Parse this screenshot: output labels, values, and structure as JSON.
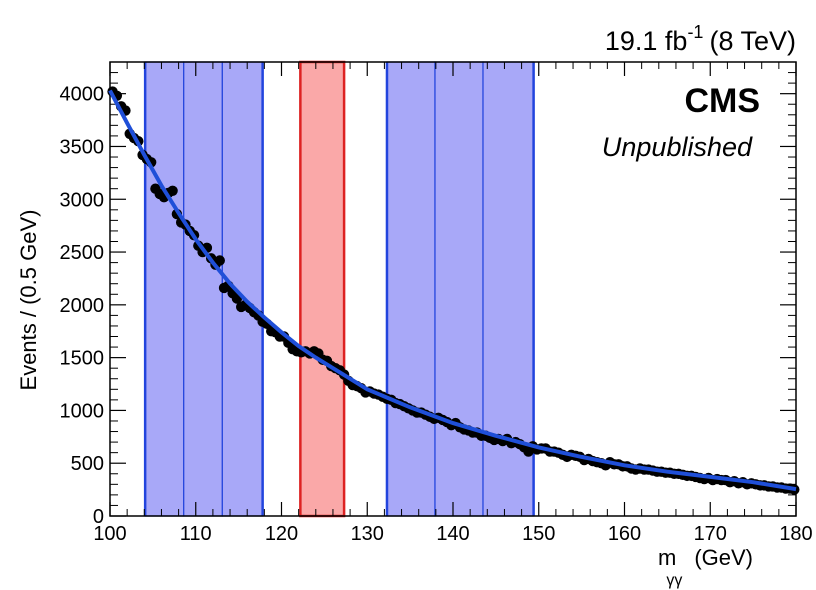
{
  "chart_data": {
    "type": "scatter",
    "title": "",
    "luminosity_label": {
      "main": "19.1 fb",
      "superscript": "-1",
      "energy": "(8 TeV)"
    },
    "experiment_label": "CMS",
    "status_label": "Unpublished",
    "xlabel": {
      "main": "m",
      "subscript": "γγ",
      "unit": "(GeV)"
    },
    "ylabel": "Events / (0.5 GeV)",
    "xlim": [
      100,
      180
    ],
    "ylim": [
      0,
      4300
    ],
    "xticks": [
      100,
      110,
      120,
      130,
      140,
      150,
      160,
      170,
      180
    ],
    "yticks": [
      0,
      500,
      1000,
      1500,
      2000,
      2500,
      3000,
      3500,
      4000
    ],
    "sideband_color": "#a8a8f8",
    "sideband_edge_color": "#2244dd",
    "signal_color": "#faa8a8",
    "signal_edge_color": "#dd2222",
    "fit_color": "#1f4fd8",
    "marker_color": "#000000",
    "sideband_regions": [
      [
        104.1,
        108.6
      ],
      [
        108.6,
        113.1
      ],
      [
        113.1,
        117.8
      ],
      [
        132.3,
        137.9
      ],
      [
        137.9,
        143.5
      ],
      [
        143.5,
        149.4
      ]
    ],
    "signal_region": [
      122.2,
      127.3
    ],
    "fit_curve": {
      "x": [
        100,
        102,
        104,
        106,
        108,
        110,
        112,
        114,
        116,
        118,
        120,
        122,
        124,
        126,
        128,
        130,
        135,
        140,
        145,
        150,
        155,
        160,
        165,
        170,
        175,
        180
      ],
      "y": [
        4030,
        3720,
        3420,
        3130,
        2870,
        2620,
        2400,
        2200,
        2030,
        1880,
        1740,
        1610,
        1500,
        1400,
        1300,
        1200,
        1030,
        880,
        760,
        650,
        560,
        480,
        420,
        370,
        320,
        255
      ]
    },
    "series": [
      {
        "x": [
          100.3,
          100.8,
          101.3,
          101.8,
          102.3,
          102.8,
          103.3,
          103.8,
          104.3,
          104.8,
          105.3,
          105.8,
          106.3,
          106.8,
          107.3,
          107.8,
          108.3,
          108.8,
          109.3,
          109.8,
          110.3,
          110.8,
          111.3,
          111.8,
          112.3,
          112.8,
          113.3,
          113.8,
          114.3,
          114.8,
          115.3,
          115.8,
          116.3,
          116.8,
          117.3,
          117.8,
          118.3,
          118.8,
          119.3,
          119.8,
          120.3,
          120.8,
          121.3,
          121.8,
          122.3,
          122.8,
          123.3,
          123.8,
          124.3,
          124.8,
          125.3,
          125.8,
          126.3,
          126.8,
          127.3,
          127.8,
          128.3,
          128.8,
          129.3,
          129.8,
          130.3,
          130.8,
          131.3,
          131.8,
          132.3,
          132.8,
          133.3,
          133.8,
          134.3,
          134.8,
          135.3,
          135.8,
          136.3,
          136.8,
          137.3,
          137.8,
          138.3,
          138.8,
          139.3,
          139.8,
          140.3,
          140.8,
          141.3,
          141.8,
          142.3,
          142.8,
          143.3,
          143.8,
          144.3,
          144.8,
          145.3,
          145.8,
          146.3,
          146.8,
          147.3,
          147.8,
          148.3,
          148.8,
          149.3,
          149.8,
          150.3,
          150.8,
          151.3,
          151.8,
          152.3,
          152.8,
          153.3,
          153.8,
          154.3,
          154.8,
          155.3,
          155.8,
          156.3,
          156.8,
          157.3,
          157.8,
          158.3,
          158.8,
          159.3,
          159.8,
          160.3,
          160.8,
          161.3,
          161.8,
          162.3,
          162.8,
          163.3,
          163.8,
          164.3,
          164.8,
          165.3,
          165.8,
          166.3,
          166.8,
          167.3,
          167.8,
          168.3,
          168.8,
          169.3,
          169.8,
          170.3,
          170.8,
          171.3,
          171.8,
          172.3,
          172.8,
          173.3,
          173.8,
          174.3,
          174.8,
          175.3,
          175.8,
          176.3,
          176.8,
          177.3,
          177.8,
          178.3,
          178.8,
          179.3,
          179.8
        ],
        "y": [
          4020,
          3980,
          3880,
          3840,
          3620,
          3580,
          3550,
          3420,
          3380,
          3350,
          3100,
          3050,
          3020,
          3060,
          3080,
          2860,
          2780,
          2760,
          2700,
          2660,
          2560,
          2500,
          2540,
          2440,
          2380,
          2420,
          2160,
          2180,
          2110,
          2060,
          1980,
          2000,
          1970,
          1930,
          1900,
          1840,
          1820,
          1750,
          1740,
          1700,
          1700,
          1640,
          1580,
          1560,
          1550,
          1560,
          1540,
          1560,
          1540,
          1480,
          1470,
          1420,
          1400,
          1380,
          1340,
          1280,
          1240,
          1230,
          1210,
          1170,
          1180,
          1160,
          1150,
          1130,
          1110,
          1100,
          1070,
          1060,
          1040,
          1020,
          1000,
          980,
          980,
          960,
          940,
          920,
          930,
          910,
          890,
          860,
          880,
          840,
          820,
          810,
          790,
          790,
          760,
          760,
          740,
          720,
          730,
          710,
          730,
          690,
          700,
          680,
          650,
          610,
          660,
          630,
          640,
          640,
          610,
          610,
          600,
          580,
          560,
          580,
          570,
          560,
          530,
          540,
          520,
          510,
          500,
          480,
          510,
          490,
          490,
          470,
          470,
          450,
          440,
          450,
          440,
          440,
          430,
          420,
          420,
          410,
          410,
          400,
          400,
          390,
          380,
          380,
          370,
          360,
          350,
          360,
          340,
          350,
          340,
          340,
          320,
          330,
          310,
          320,
          300,
          310,
          300,
          290,
          290,
          280,
          280,
          270,
          270,
          260,
          260,
          250
        ]
      }
    ]
  }
}
